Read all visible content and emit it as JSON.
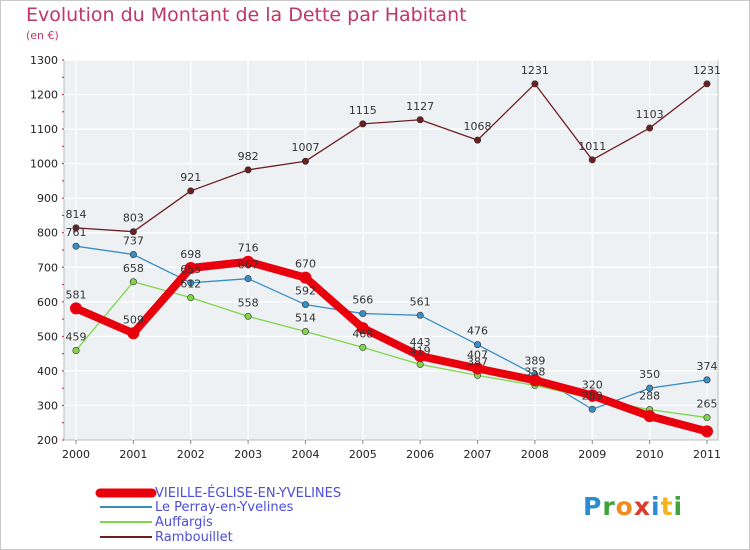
{
  "title": "Evolution du Montant de la Dette par Habitant",
  "unit_label": "(en €)",
  "logo": {
    "letters": [
      "P",
      "r",
      "o",
      "x",
      "i",
      "t",
      "i"
    ],
    "colors": [
      "#2a8dd4",
      "#3da33a",
      "#f28a1e",
      "#e03a2e",
      "#2a8dd4",
      "#f2b51e",
      "#3da33a"
    ]
  },
  "chart_data": {
    "type": "line",
    "x": [
      "2000",
      "2001",
      "2002",
      "2003",
      "2004",
      "2005",
      "2006",
      "2007",
      "2008",
      "2009",
      "2010",
      "2011"
    ],
    "ylim": [
      200,
      1300
    ],
    "yticks": [
      200,
      300,
      400,
      500,
      600,
      700,
      800,
      900,
      1000,
      1100,
      1200,
      1300
    ],
    "grid": true,
    "legend_position": "bottom-left",
    "series": [
      {
        "name": "VIEILLE-ÉGLISE-EN-YVELINES",
        "color": "#e8000c",
        "values": [
          581,
          509,
          698,
          716,
          670,
          524,
          443,
          407,
          373,
          329,
          269,
          225
        ],
        "labels": [
          "581",
          "509",
          "698",
          "716",
          "670",
          "",
          "443",
          "407",
          "",
          "",
          "",
          ""
        ]
      },
      {
        "name": "Le Perray-en-Yvelines",
        "color": "#3a8ec4",
        "values": [
          761,
          737,
          655,
          667,
          592,
          566,
          561,
          476,
          389,
          289,
          350,
          374
        ],
        "labels": [
          "761",
          "737",
          "655",
          "667",
          "592",
          "566",
          "561",
          "476",
          "389",
          "289",
          "350",
          "374"
        ]
      },
      {
        "name": "Auffargis",
        "color": "#7fd64b",
        "values": [
          459,
          658,
          612,
          558,
          514,
          468,
          419,
          387,
          358,
          320,
          288,
          265
        ],
        "labels": [
          "459",
          "658",
          "612",
          "558",
          "514",
          "468",
          "419",
          "387",
          "358",
          "320",
          "288",
          "265"
        ]
      },
      {
        "name": "Rambouillet",
        "color": "#6e1f22",
        "values": [
          814,
          803,
          921,
          982,
          1007,
          1115,
          1127,
          1068,
          1231,
          1011,
          1103,
          1231
        ],
        "labels": [
          "814",
          "803",
          "921",
          "982",
          "1007",
          "1115",
          "1127",
          "1068",
          "1231",
          "1011",
          "1103",
          "1231"
        ]
      }
    ]
  }
}
